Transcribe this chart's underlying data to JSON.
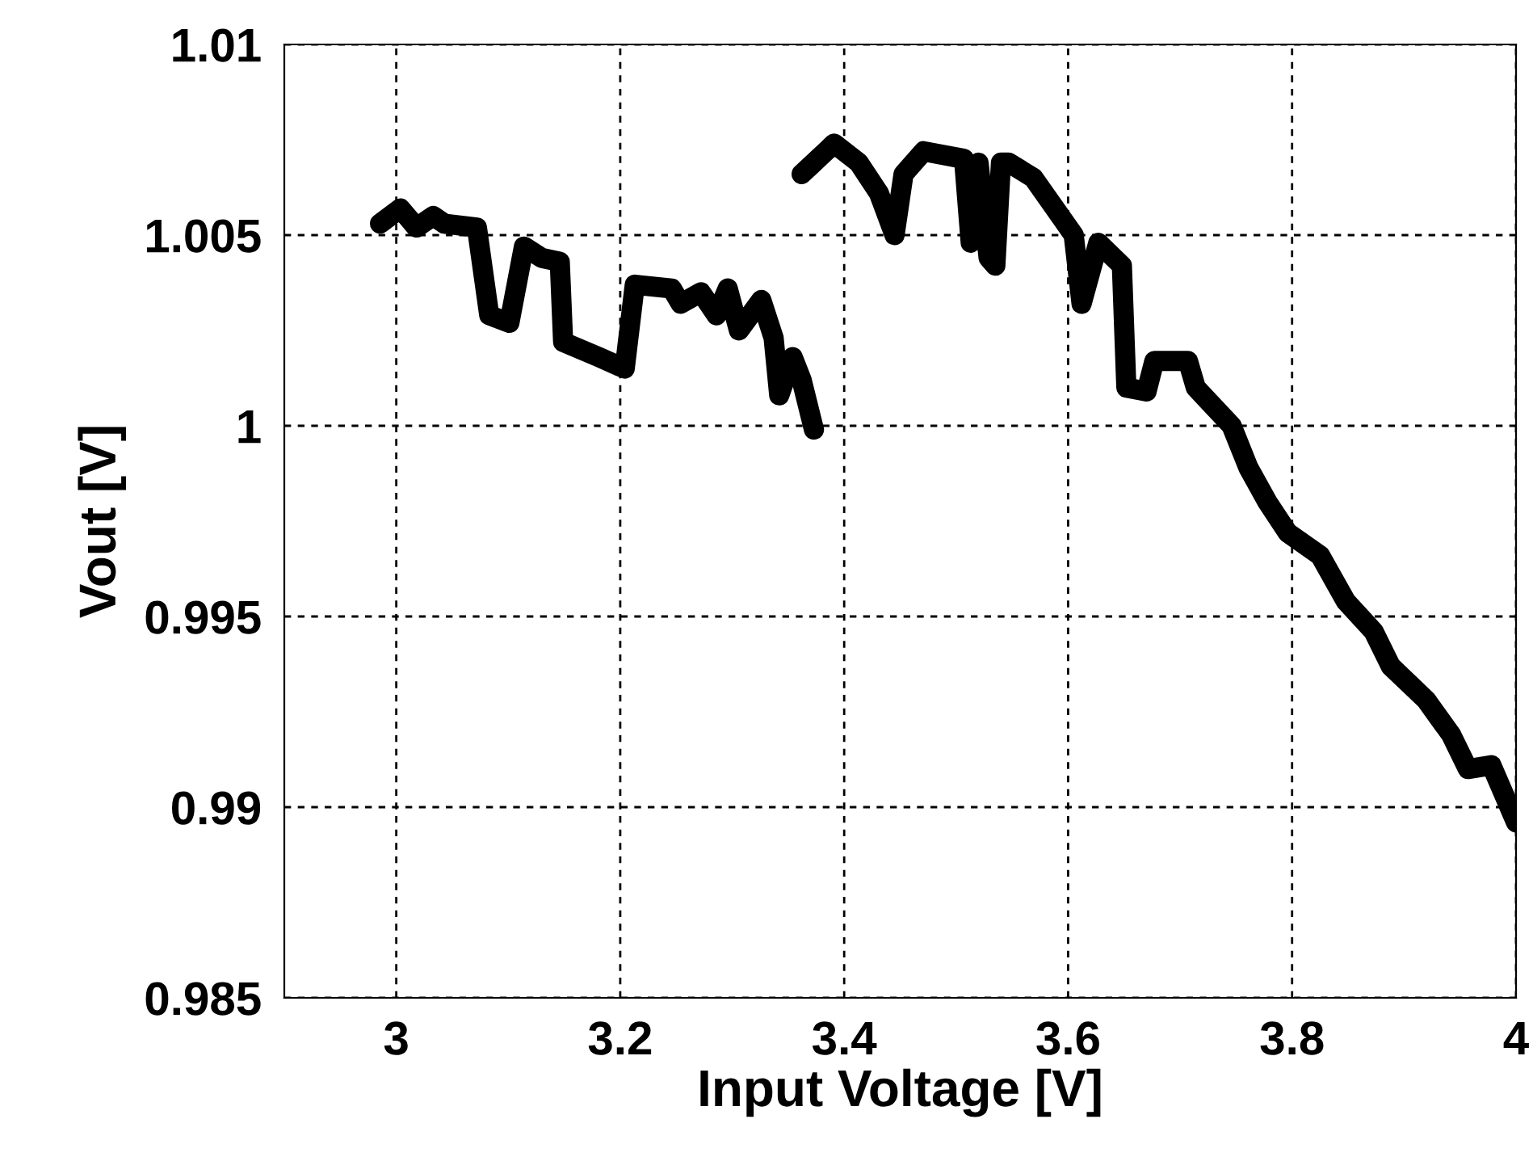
{
  "chart_data": {
    "type": "line",
    "xlabel": "Input Voltage [V]",
    "ylabel": "Vout [V]",
    "xlim": [
      2.9,
      4
    ],
    "xticks": [
      3,
      3.2,
      3.4,
      3.6,
      3.8,
      4
    ],
    "ylim": [
      0.985,
      1.01
    ],
    "yticks": [
      0.985,
      0.99,
      0.995,
      1,
      1.005,
      1.01
    ],
    "grid": true,
    "line_style": "solid",
    "series": [
      {
        "color": "#000000",
        "x": [
          2.9855,
          3.0036,
          3.018,
          3.033,
          3.043,
          3.072,
          3.083,
          3.101,
          3.114,
          3.13,
          3.146,
          3.149,
          3.181,
          3.204,
          3.213,
          3.246,
          3.254,
          3.272,
          3.286,
          3.296,
          3.306,
          3.326,
          3.337,
          3.342,
          3.354,
          3.362,
          3.373
        ],
        "values": [
          1.0053,
          1.0057,
          1.0052,
          1.0055,
          1.0053,
          1.0052,
          1.0029,
          1.0027,
          1.0047,
          1.0044,
          1.0043,
          1.0022,
          1.0018,
          1.0015,
          1.0037,
          1.0036,
          1.0032,
          1.0035,
          1.0029,
          1.0036,
          1.0025,
          1.0033,
          1.0023,
          1.0008,
          1.0018,
          1.0012,
          0.9999
        ]
      },
      {
        "color": "#000000",
        "x": [
          3.362,
          3.391,
          3.413,
          3.431,
          3.445,
          3.453,
          3.471,
          3.507,
          3.513,
          3.52,
          3.529,
          3.535,
          3.54,
          3.547,
          3.569,
          3.605,
          3.612,
          3.627,
          3.648,
          3.652,
          3.67,
          3.677,
          3.707,
          3.714,
          3.746,
          3.761,
          3.778,
          3.796,
          3.825,
          3.848,
          3.873,
          3.888,
          3.92,
          3.942,
          3.957,
          3.978,
          4.0
        ],
        "values": [
          1.0066,
          1.0074,
          1.0069,
          1.0061,
          1.005,
          1.0066,
          1.0072,
          1.007,
          1.0048,
          1.0069,
          1.0044,
          1.0042,
          1.0069,
          1.0069,
          1.0065,
          1.005,
          1.0032,
          1.0048,
          1.0042,
          1.001,
          1.0009,
          1.0017,
          1.0017,
          1.001,
          1.0,
          0.9989,
          0.998,
          0.9972,
          0.9966,
          0.9954,
          0.9946,
          0.9937,
          0.9928,
          0.9919,
          0.991,
          0.9911,
          0.9896
        ]
      }
    ]
  }
}
